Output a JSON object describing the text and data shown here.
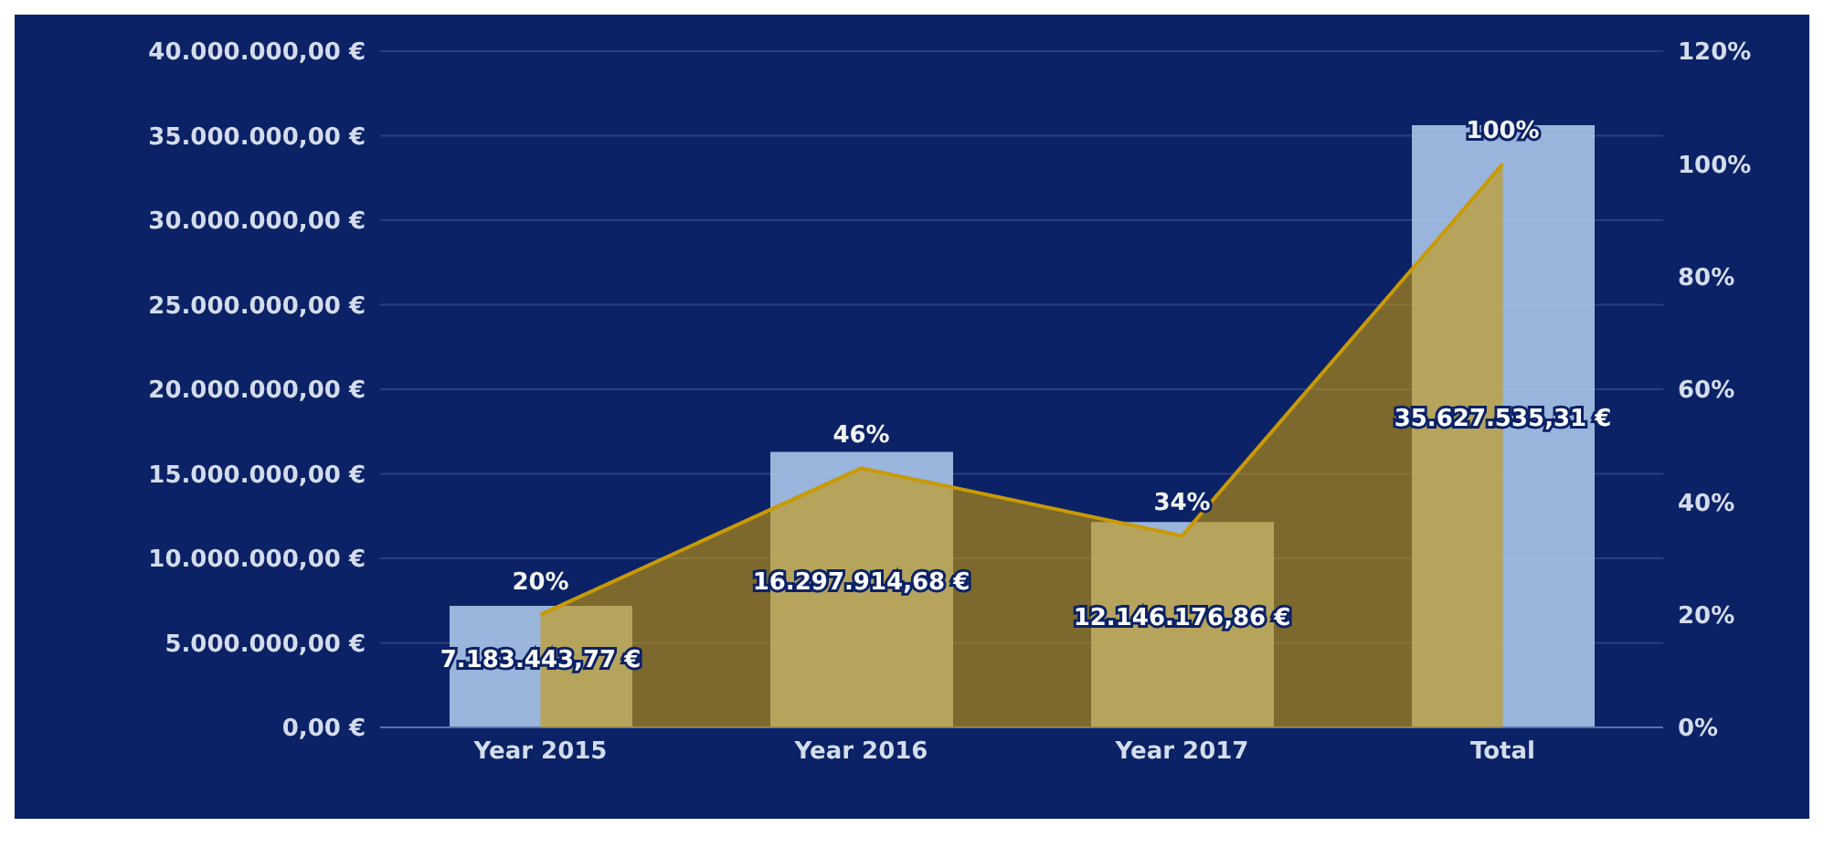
{
  "chart_data": {
    "type": "bar",
    "categories": [
      "Year 2015",
      "Year 2016",
      "Year 2017",
      "Total"
    ],
    "series": [
      {
        "type": "area",
        "axis": "y2",
        "color": "#c99a06",
        "values": [
          20,
          46,
          34,
          100
        ],
        "value_labels": [
          "20%",
          "46%",
          "34%",
          "100%"
        ]
      },
      {
        "color": "#b4cff0",
        "values": [
          7183443.77,
          16297914.68,
          12146176.86,
          35627535.31
        ],
        "value_labels": [
          "7.183.443,77 €",
          "16.297.914,68 €",
          "12.146.176,86 €",
          "35.627.535,31 €"
        ]
      }
    ],
    "ylim": [
      0,
      40000000
    ],
    "yticks": [
      {
        "value": 0,
        "label": "0,00 €"
      },
      {
        "value": 5000000,
        "label": "5.000.000,00 €"
      },
      {
        "value": 10000000,
        "label": "10.000.000,00 €"
      },
      {
        "value": 15000000,
        "label": "15.000.000,00 €"
      },
      {
        "value": 20000000,
        "label": "20.000.000,00 €"
      },
      {
        "value": 25000000,
        "label": "25.000.000,00 €"
      },
      {
        "value": 30000000,
        "label": "30.000.000,00 €"
      },
      {
        "value": 35000000,
        "label": "35.000.000,00 €"
      },
      {
        "value": 40000000,
        "label": "40.000.000,00 €"
      }
    ],
    "y2lim": [
      0,
      120
    ],
    "y2ticks": [
      {
        "value": 0,
        "label": "0%"
      },
      {
        "value": 20,
        "label": "20%"
      },
      {
        "value": 40,
        "label": "40%"
      },
      {
        "value": 60,
        "label": "60%"
      },
      {
        "value": 80,
        "label": "80%"
      },
      {
        "value": 100,
        "label": "100%"
      },
      {
        "value": 120,
        "label": "120%"
      }
    ],
    "grid": "y"
  }
}
